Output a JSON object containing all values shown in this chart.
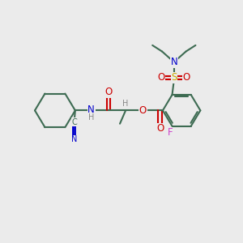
{
  "bg_color": "#ebebeb",
  "colors": {
    "bond": "#3d6b52",
    "N": "#0000cc",
    "O": "#cc0000",
    "S": "#ccaa00",
    "F": "#cc44cc",
    "H": "#888888"
  },
  "lw": 1.5,
  "fs": 8.5,
  "fs_small": 7.0
}
